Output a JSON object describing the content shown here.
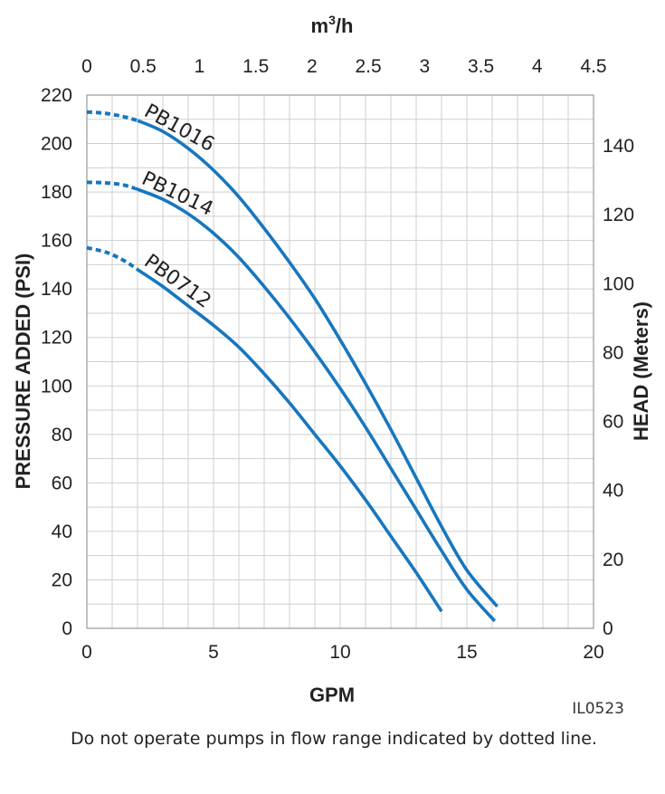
{
  "chart_data": {
    "type": "line",
    "x_axis_bottom": {
      "label": "GPM",
      "range": [
        0,
        20
      ],
      "ticks": [
        0,
        5,
        10,
        15,
        20
      ]
    },
    "x_axis_top": {
      "label_base": "m",
      "label_sup": "3",
      "label_tail": "/h",
      "range": [
        0,
        4.5
      ],
      "ticks": [
        "0",
        "0.5",
        "1",
        "1.5",
        "2",
        "2.5",
        "3",
        "3.5",
        "4",
        "4.5"
      ]
    },
    "y_axis_left": {
      "label": "PRESSURE ADDED (PSI)",
      "range": [
        0,
        220
      ],
      "ticks": [
        0,
        20,
        40,
        60,
        80,
        100,
        120,
        140,
        160,
        180,
        200,
        220
      ]
    },
    "y_axis_right": {
      "label": "HEAD (Meters)",
      "range": [
        0,
        154.7
      ],
      "ticks": [
        0,
        20,
        40,
        60,
        80,
        100,
        120,
        140
      ]
    },
    "grid": true,
    "line_color": "#1777be",
    "series": [
      {
        "name": "PB1016",
        "dotted": [
          [
            0,
            213
          ],
          [
            0.7,
            212.5
          ],
          [
            1.4,
            211.2
          ],
          [
            2.0,
            209.5
          ]
        ],
        "solid": [
          [
            2.0,
            209.5
          ],
          [
            3,
            205
          ],
          [
            4,
            198
          ],
          [
            5,
            189
          ],
          [
            6,
            178
          ],
          [
            7,
            165
          ],
          [
            8,
            151
          ],
          [
            9,
            136
          ],
          [
            10,
            119
          ],
          [
            11,
            101
          ],
          [
            12,
            82
          ],
          [
            13,
            62
          ],
          [
            14,
            42
          ],
          [
            15,
            24
          ],
          [
            16.2,
            9
          ]
        ]
      },
      {
        "name": "PB1014",
        "dotted": [
          [
            0,
            184
          ],
          [
            0.7,
            183.8
          ],
          [
            1.4,
            183
          ],
          [
            1.9,
            181.5
          ]
        ],
        "solid": [
          [
            1.9,
            181.5
          ],
          [
            3,
            177
          ],
          [
            4,
            171
          ],
          [
            5,
            163
          ],
          [
            6,
            153
          ],
          [
            7,
            141
          ],
          [
            8,
            128
          ],
          [
            9,
            114
          ],
          [
            10,
            99
          ],
          [
            11,
            83
          ],
          [
            12,
            66
          ],
          [
            13,
            49
          ],
          [
            14,
            32
          ],
          [
            15,
            16
          ],
          [
            16.1,
            3
          ]
        ]
      },
      {
        "name": "PB0712",
        "dotted": [
          [
            0,
            157
          ],
          [
            0.8,
            155
          ],
          [
            1.5,
            151.5
          ],
          [
            2.0,
            148
          ]
        ],
        "solid": [
          [
            2.0,
            148
          ],
          [
            3,
            141
          ],
          [
            4,
            133
          ],
          [
            5,
            125
          ],
          [
            6,
            116
          ],
          [
            7,
            105
          ],
          [
            8,
            93
          ],
          [
            9,
            80
          ],
          [
            10,
            67
          ],
          [
            11,
            53
          ],
          [
            12,
            38
          ],
          [
            13,
            23
          ],
          [
            14,
            7
          ]
        ]
      }
    ],
    "annotations": {
      "code": "IL0523"
    }
  },
  "footer": {
    "note": "Do not operate pumps in flow range indicated by dotted line."
  }
}
